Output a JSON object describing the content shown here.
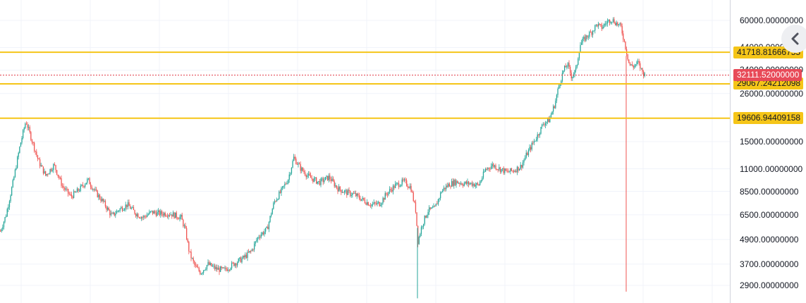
{
  "chart_data": {
    "type": "candlestick",
    "scale": "log",
    "ylim": [
      2700,
      70000
    ],
    "grid": true,
    "price_axis_ticks": [
      {
        "value": 60000,
        "label": "60000.00000000"
      },
      {
        "value": 44000,
        "label": "44000.00000000"
      },
      {
        "value": 34000,
        "label": "34000.00000000"
      },
      {
        "value": 26000,
        "label": "26000.00000000"
      },
      {
        "value": 15000,
        "label": "15000.00000000"
      },
      {
        "value": 11000,
        "label": "11000.00000000"
      },
      {
        "value": 8500,
        "label": "8500.00000000"
      },
      {
        "value": 6500,
        "label": "6500.00000000"
      },
      {
        "value": 4900,
        "label": "4900.00000000"
      },
      {
        "value": 3700,
        "label": "3700.00000000"
      },
      {
        "value": 2900,
        "label": "2900.00000000"
      }
    ],
    "horizontal_levels": [
      {
        "value": 41718.81666755,
        "label": "41718.81666755"
      },
      {
        "value": 29067.24212098,
        "label": "29067.24212098"
      },
      {
        "value": 19606.94409158,
        "label": "19606.94409158"
      }
    ],
    "last_price": {
      "value": 32111.52,
      "label": "32111.52000000"
    },
    "price_path": [
      [
        0,
        5400
      ],
      [
        8,
        6500
      ],
      [
        18,
        9500
      ],
      [
        28,
        14500
      ],
      [
        36,
        19000
      ],
      [
        44,
        15500
      ],
      [
        54,
        12000
      ],
      [
        64,
        10200
      ],
      [
        76,
        11500
      ],
      [
        88,
        9000
      ],
      [
        100,
        8000
      ],
      [
        112,
        8700
      ],
      [
        124,
        9700
      ],
      [
        134,
        8500
      ],
      [
        146,
        7500
      ],
      [
        158,
        6400
      ],
      [
        168,
        6900
      ],
      [
        180,
        7300
      ],
      [
        192,
        6600
      ],
      [
        202,
        6300
      ],
      [
        214,
        6700
      ],
      [
        226,
        6600
      ],
      [
        240,
        6600
      ],
      [
        256,
        6300
      ],
      [
        262,
        5500
      ],
      [
        268,
        4200
      ],
      [
        276,
        3600
      ],
      [
        284,
        3350
      ],
      [
        294,
        3700
      ],
      [
        306,
        3500
      ],
      [
        318,
        3450
      ],
      [
        330,
        3700
      ],
      [
        344,
        3950
      ],
      [
        356,
        4300
      ],
      [
        366,
        5100
      ],
      [
        378,
        5500
      ],
      [
        388,
        7500
      ],
      [
        398,
        8500
      ],
      [
        408,
        9800
      ],
      [
        416,
        12500
      ],
      [
        426,
        11000
      ],
      [
        438,
        10000
      ],
      [
        452,
        9400
      ],
      [
        466,
        10000
      ],
      [
        478,
        8800
      ],
      [
        490,
        8400
      ],
      [
        502,
        8200
      ],
      [
        514,
        7700
      ],
      [
        526,
        7300
      ],
      [
        538,
        7400
      ],
      [
        548,
        8300
      ],
      [
        560,
        9100
      ],
      [
        572,
        9500
      ],
      [
        582,
        8900
      ],
      [
        589,
        6800
      ],
      [
        592,
        4800
      ],
      [
        598,
        5800
      ],
      [
        606,
        6800
      ],
      [
        616,
        7000
      ],
      [
        626,
        8600
      ],
      [
        636,
        9200
      ],
      [
        646,
        9500
      ],
      [
        656,
        9300
      ],
      [
        668,
        9300
      ],
      [
        678,
        9100
      ],
      [
        688,
        10900
      ],
      [
        698,
        11500
      ],
      [
        708,
        11000
      ],
      [
        718,
        10600
      ],
      [
        728,
        10800
      ],
      [
        738,
        11300
      ],
      [
        746,
        12900
      ],
      [
        754,
        14500
      ],
      [
        762,
        16200
      ],
      [
        770,
        18500
      ],
      [
        778,
        19200
      ],
      [
        786,
        23000
      ],
      [
        792,
        28500
      ],
      [
        798,
        33500
      ],
      [
        804,
        36500
      ],
      [
        810,
        31500
      ],
      [
        816,
        34000
      ],
      [
        822,
        45500
      ],
      [
        830,
        49500
      ],
      [
        838,
        52500
      ],
      [
        846,
        57500
      ],
      [
        852,
        55000
      ],
      [
        858,
        58000
      ],
      [
        866,
        61000
      ],
      [
        874,
        58000
      ],
      [
        880,
        55500
      ],
      [
        886,
        45000
      ],
      [
        892,
        36000
      ],
      [
        898,
        35500
      ],
      [
        904,
        37000
      ],
      [
        910,
        33500
      ],
      [
        914,
        32111
      ]
    ],
    "wicks": [
      {
        "x": 592,
        "low": 2500,
        "high": 5600
      },
      {
        "x": 888,
        "low": 2700,
        "high": 40000
      }
    ]
  },
  "colors": {
    "up": "#26a69a",
    "down": "#ef5350",
    "level_line": "#f5c518",
    "level_tag_bg": "#f5c518",
    "level_tag_text": "#131722",
    "last_price_line": "#e03a45",
    "last_price_tag_bg": "#e84a58",
    "last_price_tag_text": "#ffffff",
    "grid": "#f0f3fa",
    "axis_text": "#131722"
  },
  "icons": {
    "collapse": "chevron-left-icon"
  }
}
